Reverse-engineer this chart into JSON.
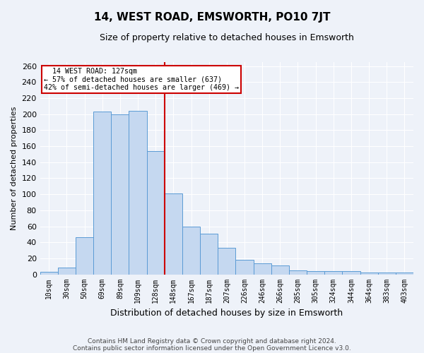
{
  "title": "14, WEST ROAD, EMSWORTH, PO10 7JT",
  "subtitle": "Size of property relative to detached houses in Emsworth",
  "xlabel": "Distribution of detached houses by size in Emsworth",
  "ylabel": "Number of detached properties",
  "categories": [
    "10sqm",
    "30sqm",
    "50sqm",
    "69sqm",
    "89sqm",
    "109sqm",
    "128sqm",
    "148sqm",
    "167sqm",
    "187sqm",
    "207sqm",
    "226sqm",
    "246sqm",
    "266sqm",
    "285sqm",
    "305sqm",
    "324sqm",
    "344sqm",
    "364sqm",
    "383sqm",
    "403sqm"
  ],
  "values": [
    3,
    8,
    46,
    203,
    200,
    204,
    154,
    101,
    60,
    51,
    33,
    18,
    14,
    11,
    5,
    4,
    4,
    4,
    2,
    2,
    2
  ],
  "bar_color": "#c5d8f0",
  "bar_edge_color": "#5b9bd5",
  "annotation_text_line1": "  14 WEST ROAD: 127sqm  ",
  "annotation_text_line2": "← 57% of detached houses are smaller (637)",
  "annotation_text_line3": "42% of semi-detached houses are larger (469) →",
  "annotation_box_color": "#ffffff",
  "annotation_box_edge_color": "#cc0000",
  "highlight_line_color": "#cc0000",
  "ylim": [
    0,
    265
  ],
  "yticks": [
    0,
    20,
    40,
    60,
    80,
    100,
    120,
    140,
    160,
    180,
    200,
    220,
    240,
    260
  ],
  "background_color": "#eef2f9",
  "grid_color": "#ffffff",
  "footer_line1": "Contains HM Land Registry data © Crown copyright and database right 2024.",
  "footer_line2": "Contains public sector information licensed under the Open Government Licence v3.0."
}
